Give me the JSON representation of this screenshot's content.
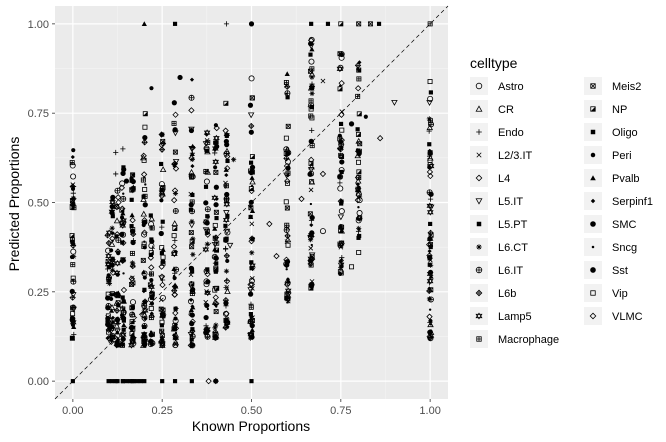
{
  "chart_data": {
    "type": "scatter",
    "xlabel": "Known Proportions",
    "ylabel": "Predicted Proportions",
    "xlim": [
      -0.05,
      1.05
    ],
    "ylim": [
      -0.05,
      1.05
    ],
    "x_ticks": [
      "0.00",
      "0.25",
      "0.50",
      "0.75",
      "1.00"
    ],
    "y_ticks": [
      "0.00",
      "0.25",
      "0.50",
      "0.75",
      "1.00"
    ],
    "grid": true,
    "reference_line": {
      "type": "identity",
      "style": "dashed",
      "slope": 1,
      "intercept": 0
    },
    "legend": {
      "title": "celltype",
      "placement": "right",
      "columns": 2,
      "entries": [
        {
          "name": "Astro",
          "icon": "open-circle"
        },
        {
          "name": "CR",
          "icon": "open-triangle"
        },
        {
          "name": "Endo",
          "icon": "plus"
        },
        {
          "name": "L2/3.IT",
          "icon": "cross"
        },
        {
          "name": "L4",
          "icon": "open-diamond"
        },
        {
          "name": "L5.IT",
          "icon": "open-triangle-down"
        },
        {
          "name": "L5.PT",
          "icon": "crossed-square"
        },
        {
          "name": "L6.CT",
          "icon": "asterisk"
        },
        {
          "name": "L6.IT",
          "icon": "circle-plus"
        },
        {
          "name": "L6b",
          "icon": "diamond-plus"
        },
        {
          "name": "Lamp5",
          "icon": "star-of-david"
        },
        {
          "name": "Macrophage",
          "icon": "boxed-plus"
        },
        {
          "name": "Meis2",
          "icon": "boxed-cross"
        },
        {
          "name": "NP",
          "icon": "square-triangle"
        },
        {
          "name": "Oligo",
          "icon": "filled-square"
        },
        {
          "name": "Peri",
          "icon": "filled-circle"
        },
        {
          "name": "Pvalb",
          "icon": "filled-triangle"
        },
        {
          "name": "Serpinf1",
          "icon": "filled-diamond"
        },
        {
          "name": "SMC",
          "icon": "large-filled-circle"
        },
        {
          "name": "Sncg",
          "icon": "small-dot"
        },
        {
          "name": "Sst",
          "icon": "filled-circle-outline"
        },
        {
          "name": "Vip",
          "icon": "open-square"
        },
        {
          "name": "VLMC",
          "icon": "open-diamond"
        }
      ]
    },
    "columns": [
      {
        "x": 0.0,
        "ylow": 0.12,
        "yhigh": 0.65,
        "zero": true
      },
      {
        "x": 0.1,
        "ylow": 0.11,
        "yhigh": 0.42,
        "zero": true
      },
      {
        "x": 0.11,
        "ylow": 0.11,
        "yhigh": 0.52,
        "zero": true
      },
      {
        "x": 0.125,
        "ylow": 0.1,
        "yhigh": 0.56,
        "zero": true
      },
      {
        "x": 0.14,
        "ylow": 0.1,
        "yhigh": 0.6,
        "zero": true
      },
      {
        "x": 0.167,
        "ylow": 0.1,
        "yhigh": 0.63,
        "zero": true
      },
      {
        "x": 0.2,
        "ylow": 0.1,
        "yhigh": 0.78,
        "zero": true
      },
      {
        "x": 0.22,
        "ylow": 0.1,
        "yhigh": 0.48,
        "zero": false
      },
      {
        "x": 0.25,
        "ylow": 0.1,
        "yhigh": 0.72,
        "zero": true
      },
      {
        "x": 0.286,
        "ylow": 0.1,
        "yhigh": 0.78,
        "zero": true
      },
      {
        "x": 0.333,
        "ylow": 0.1,
        "yhigh": 0.85,
        "zero": true
      },
      {
        "x": 0.375,
        "ylow": 0.12,
        "yhigh": 0.7,
        "zero": false
      },
      {
        "x": 0.4,
        "ylow": 0.12,
        "yhigh": 0.78,
        "zero": true
      },
      {
        "x": 0.43,
        "ylow": 0.15,
        "yhigh": 0.8,
        "zero": false
      },
      {
        "x": 0.5,
        "ylow": 0.12,
        "yhigh": 0.85,
        "zero": true
      },
      {
        "x": 0.6,
        "ylow": 0.22,
        "yhigh": 0.84,
        "zero": false
      },
      {
        "x": 0.667,
        "ylow": 0.25,
        "yhigh": 0.98,
        "zero": false
      },
      {
        "x": 0.75,
        "ylow": 0.3,
        "yhigh": 0.96,
        "zero": false
      },
      {
        "x": 0.8,
        "ylow": 0.4,
        "yhigh": 0.9,
        "zero": false
      },
      {
        "x": 1.0,
        "ylow": 0.12,
        "yhigh": 0.87,
        "zero": false
      }
    ],
    "points": [
      {
        "x": 0.2,
        "y": 1.0,
        "c": "Pvalb"
      },
      {
        "x": 0.286,
        "y": 1.0,
        "c": "Oligo"
      },
      {
        "x": 0.43,
        "y": 1.0,
        "c": "Endo"
      },
      {
        "x": 0.5,
        "y": 1.0,
        "c": "SMC"
      },
      {
        "x": 0.667,
        "y": 1.0,
        "c": "Oligo"
      },
      {
        "x": 0.714,
        "y": 1.0,
        "c": "Oligo"
      },
      {
        "x": 0.75,
        "y": 1.0,
        "c": "NP"
      },
      {
        "x": 0.8,
        "y": 1.0,
        "c": "Meis2"
      },
      {
        "x": 0.833,
        "y": 1.0,
        "c": "Meis2"
      },
      {
        "x": 0.857,
        "y": 1.0,
        "c": "Oligo"
      },
      {
        "x": 1.0,
        "y": 1.0,
        "c": "Macrophage"
      },
      {
        "x": 0.22,
        "y": 0.82,
        "c": "Peri"
      },
      {
        "x": 0.3,
        "y": 0.85,
        "c": "SMC"
      },
      {
        "x": 0.6,
        "y": 0.86,
        "c": "Pvalb"
      },
      {
        "x": 0.7,
        "y": 0.84,
        "c": "L2/3.IT"
      },
      {
        "x": 0.9,
        "y": 0.78,
        "c": "L5.IT"
      },
      {
        "x": 0.78,
        "y": 0.72,
        "c": "Sst"
      },
      {
        "x": 0.82,
        "y": 0.74,
        "c": "Peri"
      },
      {
        "x": 0.86,
        "y": 0.68,
        "c": "VLMC"
      },
      {
        "x": 0.7,
        "y": 0.58,
        "c": "L4"
      },
      {
        "x": 0.6,
        "y": 0.56,
        "c": "L4"
      },
      {
        "x": 0.64,
        "y": 0.51,
        "c": "L4"
      },
      {
        "x": 0.8,
        "y": 0.45,
        "c": "Astro"
      },
      {
        "x": 0.7,
        "y": 0.42,
        "c": "Astro"
      },
      {
        "x": 0.8,
        "y": 0.36,
        "c": "Vip"
      },
      {
        "x": 0.78,
        "y": 0.32,
        "c": "Vip"
      },
      {
        "x": 0.12,
        "y": 0.64,
        "c": "Endo"
      },
      {
        "x": 0.14,
        "y": 0.65,
        "c": "Endo"
      },
      {
        "x": 0.12,
        "y": 0.58,
        "c": "Endo"
      },
      {
        "x": 0.25,
        "y": 0.69,
        "c": "Oligo"
      },
      {
        "x": 0.17,
        "y": 0.54,
        "c": "Oligo"
      },
      {
        "x": 0.15,
        "y": 0.56,
        "c": "SMC"
      },
      {
        "x": 0.45,
        "y": 0.62,
        "c": "L6.CT"
      },
      {
        "x": 0.55,
        "y": 0.44,
        "c": "VLMC"
      },
      {
        "x": 0.57,
        "y": 0.35,
        "c": "L4"
      },
      {
        "x": 0.6,
        "y": 0.27,
        "c": "L4"
      },
      {
        "x": 0.44,
        "y": 0.38,
        "c": "L5.IT"
      },
      {
        "x": 0.2,
        "y": 0.57,
        "c": "Sncg"
      },
      {
        "x": 0.0,
        "y": 0.55,
        "c": "L2/3.IT"
      },
      {
        "x": 0.1,
        "y": 0.35,
        "c": "Lamp5"
      },
      {
        "x": 0.12,
        "y": 0.0,
        "c": "L5.PT"
      },
      {
        "x": 0.14,
        "y": 0.0,
        "c": "L5.PT"
      },
      {
        "x": 0.15,
        "y": 0.0,
        "c": "L5.PT"
      },
      {
        "x": 0.16,
        "y": 0.0,
        "c": "L5.PT"
      },
      {
        "x": 0.17,
        "y": 0.0,
        "c": "L5.PT"
      },
      {
        "x": 0.18,
        "y": 0.0,
        "c": "L5.PT"
      },
      {
        "x": 0.19,
        "y": 0.0,
        "c": "L5.PT"
      },
      {
        "x": 0.38,
        "y": 0.0,
        "c": "L4"
      },
      {
        "x": 0.4,
        "y": 0.0,
        "c": "L4"
      },
      {
        "x": 1.0,
        "y": 0.2,
        "c": "Sncg"
      },
      {
        "x": 1.0,
        "y": 0.4,
        "c": "CR"
      },
      {
        "x": 1.0,
        "y": 0.3,
        "c": "Lamp5"
      },
      {
        "x": 1.0,
        "y": 0.44,
        "c": "Oligo"
      }
    ]
  }
}
